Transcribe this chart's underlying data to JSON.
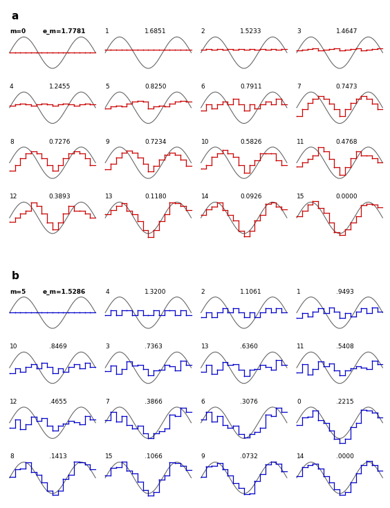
{
  "panel_a": {
    "order": [
      0,
      1,
      2,
      3,
      4,
      5,
      6,
      7,
      8,
      9,
      10,
      11,
      12,
      13,
      14,
      15
    ],
    "errors": [
      1.7781,
      1.6851,
      1.5233,
      1.4647,
      1.2455,
      0.825,
      0.7911,
      0.7473,
      0.7276,
      0.7234,
      0.5826,
      0.4768,
      0.3893,
      0.118,
      0.0926,
      0.0
    ],
    "first_m_label": "m=0",
    "first_e_label": "e_m=",
    "color": "#cc0000",
    "sine_color": "#666666"
  },
  "panel_b": {
    "order": [
      5,
      4,
      2,
      1,
      10,
      3,
      13,
      11,
      12,
      7,
      6,
      0,
      8,
      15,
      9,
      14
    ],
    "errors": [
      1.5286,
      1.32,
      1.1061,
      0.9493,
      0.8469,
      0.7363,
      0.636,
      0.5408,
      0.4655,
      0.3866,
      0.3076,
      0.2215,
      0.1413,
      0.1066,
      0.0732,
      0.0
    ],
    "first_m_label": "m=5",
    "first_e_label": "e_m=",
    "color": "#0000cc",
    "sine_color": "#666666"
  },
  "n_points": 16,
  "sine_freq": 1.5,
  "background_color": "#ffffff"
}
